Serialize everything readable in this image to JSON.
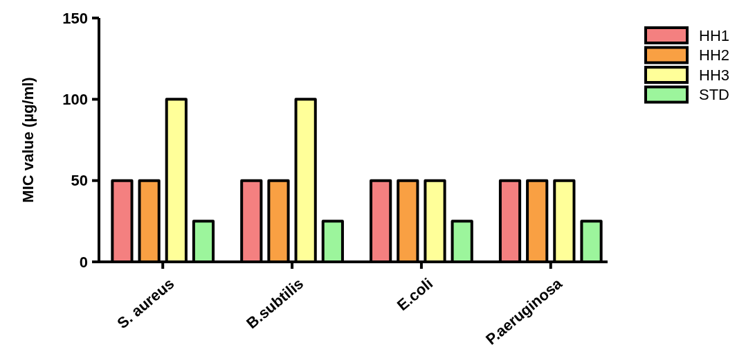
{
  "chart_data": {
    "type": "bar",
    "ylabel": "MIC value (µg/ml)",
    "categories": [
      "S. aureus",
      "B.subtilis",
      "E.coli",
      "P.aeruginosa"
    ],
    "series": [
      {
        "name": "HH1",
        "color": "#f48080",
        "values": [
          50,
          50,
          50,
          50
        ]
      },
      {
        "name": "HH2",
        "color": "#f9a043",
        "values": [
          50,
          50,
          50,
          50
        ]
      },
      {
        "name": "HH3",
        "color": "#ffff99",
        "values": [
          100,
          100,
          50,
          50
        ]
      },
      {
        "name": "STD",
        "color": "#9cf59c",
        "values": [
          25,
          25,
          25,
          25
        ]
      }
    ],
    "ylim": [
      0,
      150
    ],
    "yticks": [
      0,
      50,
      100,
      150
    ],
    "grid": false,
    "legend": "right"
  }
}
